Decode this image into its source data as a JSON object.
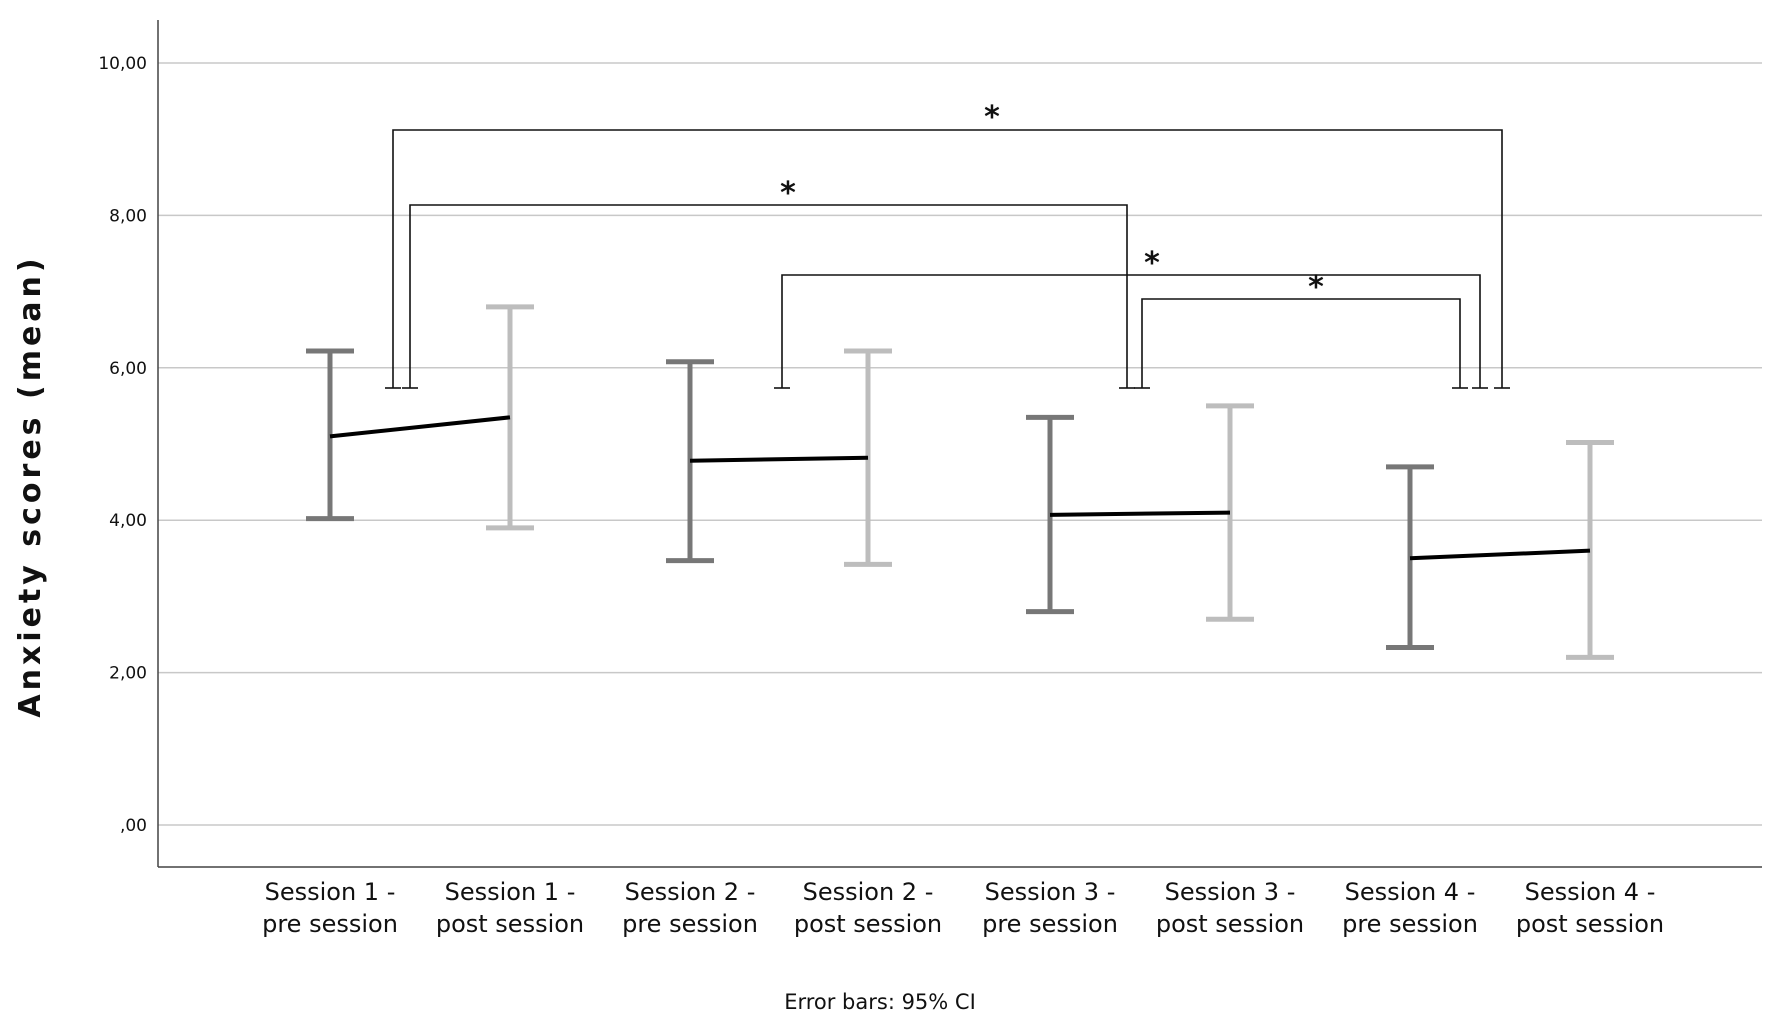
{
  "chart_data": {
    "type": "line",
    "ylabel": "Anxiety scores (mean)",
    "ylim": [
      0,
      10
    ],
    "yticks": [
      0,
      2,
      4,
      6,
      8,
      10
    ],
    "ytick_labels": [
      ",00",
      "2,00",
      "4,00",
      "6,00",
      "8,00",
      "10,00"
    ],
    "grid": true,
    "categories": [
      [
        "Session 1 -",
        "pre session"
      ],
      [
        "Session 1 -",
        "post session"
      ],
      [
        "Session 2 -",
        "pre session"
      ],
      [
        "Session 2 -",
        "post session"
      ],
      [
        "Session 3 -",
        "pre session"
      ],
      [
        "Session 3 -",
        "post session"
      ],
      [
        "Session 4 -",
        "pre session"
      ],
      [
        "Session 4 -",
        "post session"
      ]
    ],
    "means": [
      5.1,
      5.35,
      4.78,
      4.82,
      4.07,
      4.1,
      3.5,
      3.6
    ],
    "ci_lower": [
      4.02,
      3.9,
      3.47,
      3.42,
      2.8,
      2.7,
      2.33,
      2.2
    ],
    "ci_upper": [
      6.22,
      6.8,
      6.08,
      6.22,
      5.35,
      5.5,
      4.7,
      5.02
    ],
    "colors": {
      "pre": "#777777",
      "post": "#bdbdbd",
      "mean_line": "#000000",
      "grid": "#c8c8c8"
    },
    "significance": [
      {
        "from": 0,
        "to": 7,
        "label": "*"
      },
      {
        "from": 0,
        "to": 4,
        "label": "*"
      },
      {
        "from": 2,
        "to": 6,
        "label": "*"
      },
      {
        "from": 4,
        "to": 6,
        "label": "*"
      }
    ],
    "footnote": "Error bars: 95% CI"
  }
}
